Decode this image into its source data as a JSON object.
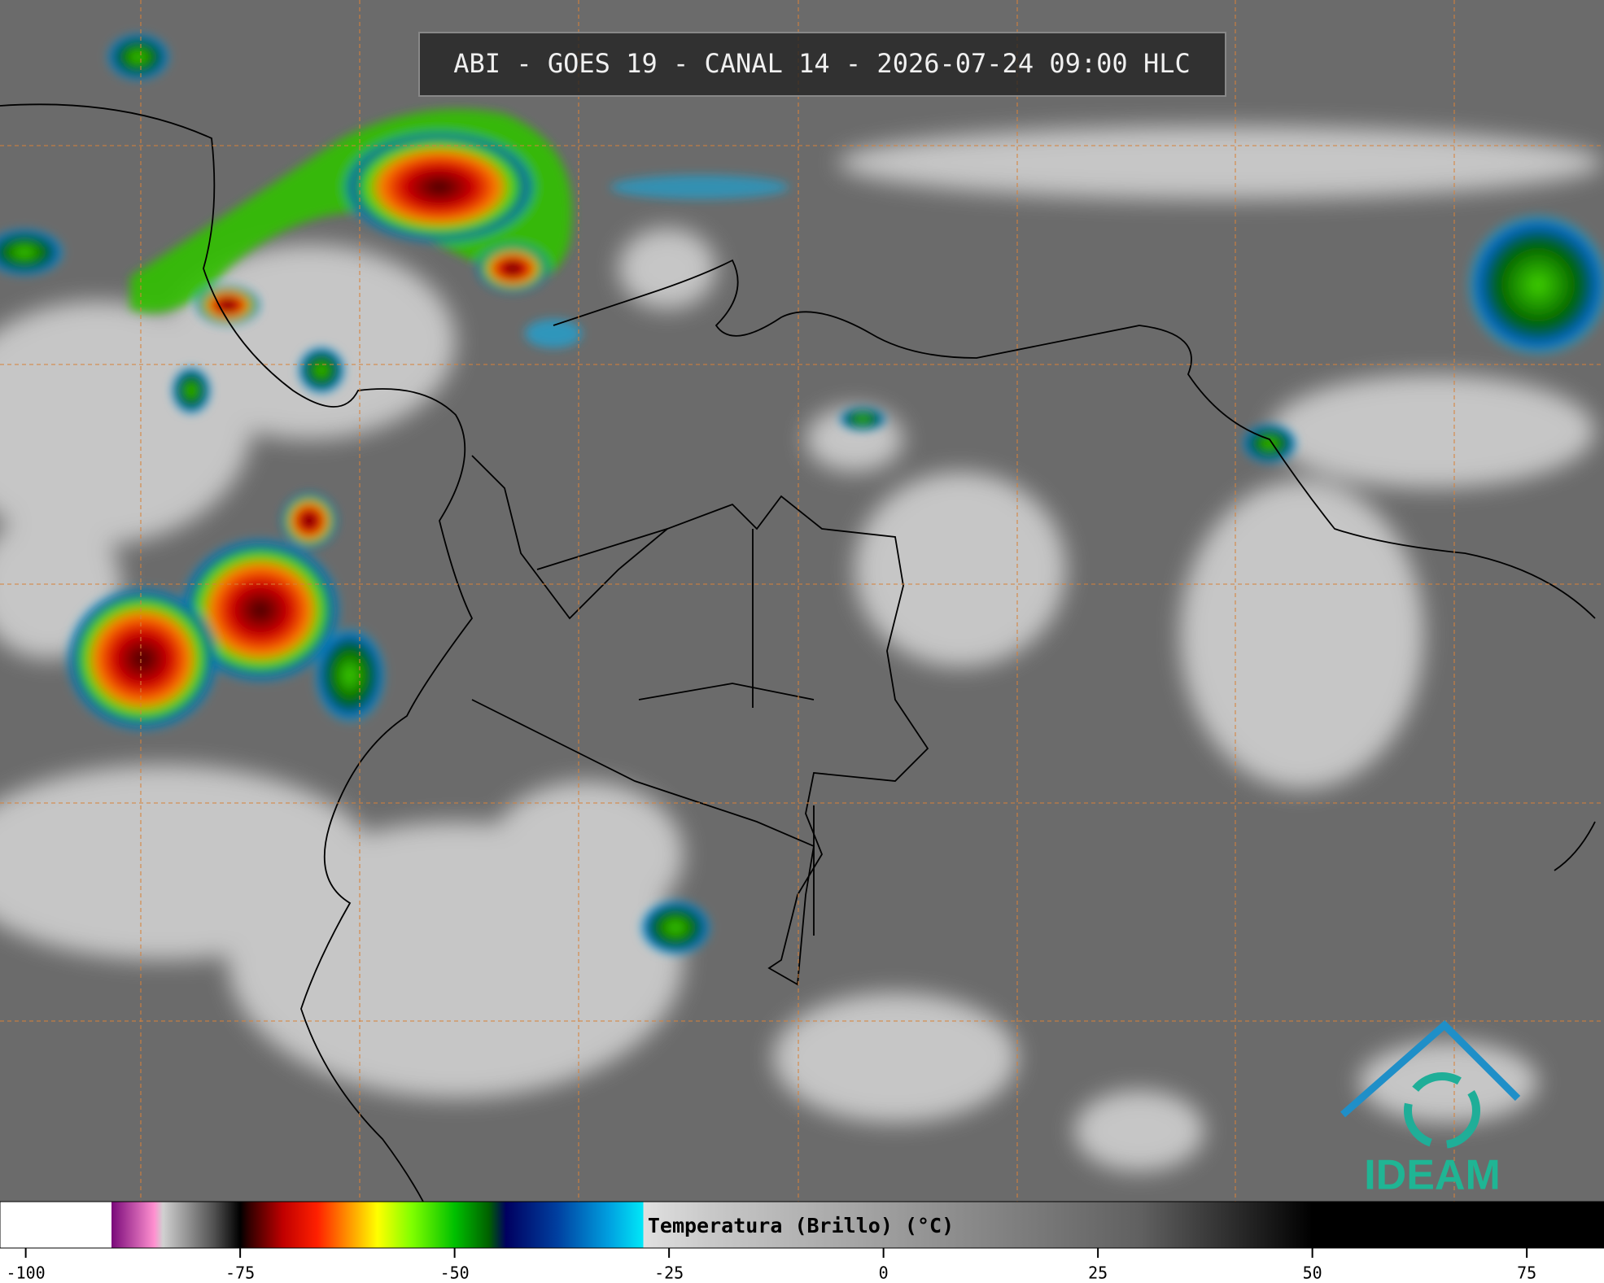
{
  "header": {
    "title": "ABI - GOES 19 - CANAL 14 - 2026-07-24 09:00 HLC"
  },
  "logo": {
    "text": "IDEAM"
  },
  "colorbar": {
    "label": "Temperatura (Brillo) (°C)",
    "range": [
      -103,
      84
    ],
    "ticks": [
      -100,
      -75,
      -50,
      -25,
      0,
      25,
      50,
      75
    ],
    "stops": [
      [
        -103,
        "#ffffff"
      ],
      [
        -90,
        "#ffffff"
      ],
      [
        -90,
        "#7a0a7a"
      ],
      [
        -85,
        "#ff90d0"
      ],
      [
        -84,
        "#d0d0d0"
      ],
      [
        -78,
        "#505050"
      ],
      [
        -75,
        "#000000"
      ],
      [
        -74,
        "#300000"
      ],
      [
        -70,
        "#c00000"
      ],
      [
        -66,
        "#ff2000"
      ],
      [
        -62,
        "#ffa000"
      ],
      [
        -59,
        "#ffff00"
      ],
      [
        -55,
        "#80ff00"
      ],
      [
        -50,
        "#00c000"
      ],
      [
        -46,
        "#006000"
      ],
      [
        -44,
        "#000060"
      ],
      [
        -38,
        "#0040a0"
      ],
      [
        -32,
        "#00a0e0"
      ],
      [
        -28,
        "#00e8f8"
      ],
      [
        -28,
        "#e0e0e0"
      ],
      [
        -20,
        "#c8c8c8"
      ],
      [
        30,
        "#606060"
      ],
      [
        50,
        "#000000"
      ],
      [
        84,
        "#000000"
      ]
    ]
  }
}
